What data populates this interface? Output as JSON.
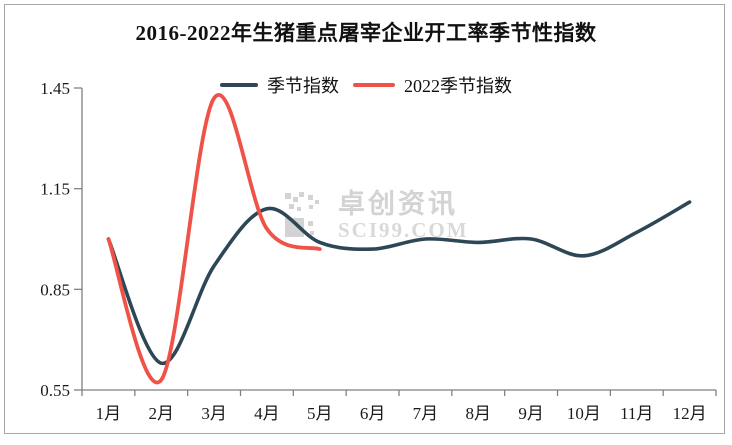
{
  "title": "2016-2022年生猪重点屠宰企业开工率季节性指数",
  "watermark": {
    "brand": "卓创资讯",
    "site": "SCI99.COM"
  },
  "colors": {
    "series_seasonal": "#2e4756",
    "series_2022": "#ef5347",
    "axis": "#808080",
    "frame_border": "#a8a8a8",
    "text": "#1a1a1a",
    "watermark": "#d0d0d0"
  },
  "chart_data": {
    "type": "line",
    "title": "2016-2022年生猪重点屠宰企业开工率季节性指数",
    "categories": [
      "1月",
      "2月",
      "3月",
      "4月",
      "5月",
      "6月",
      "7月",
      "8月",
      "9月",
      "10月",
      "11月",
      "12月"
    ],
    "series": [
      {
        "name": "季节指数",
        "color": "#2e4756",
        "values": [
          1.0,
          0.63,
          0.92,
          1.09,
          0.99,
          0.97,
          1.0,
          0.99,
          1.0,
          0.95,
          1.02,
          1.11
        ]
      },
      {
        "name": "2022季节指数",
        "color": "#ef5347",
        "values": [
          1.0,
          0.58,
          1.42,
          1.03,
          0.97,
          null,
          null,
          null,
          null,
          null,
          null,
          null
        ]
      }
    ],
    "xlabel": "",
    "ylabel": "",
    "ylim": [
      0.55,
      1.45
    ],
    "y_ticks": [
      "1.45",
      "1.15",
      "0.85",
      "0.55"
    ],
    "grid": false,
    "legend_position": "top",
    "line_style": "smooth"
  }
}
